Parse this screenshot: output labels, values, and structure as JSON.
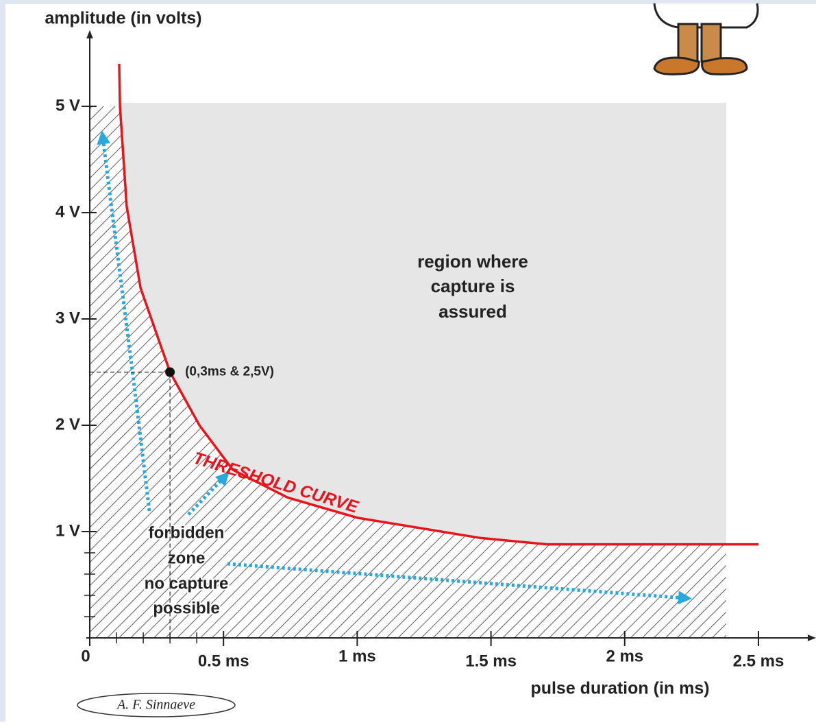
{
  "chart_data": {
    "type": "line",
    "y_label": "amplitude (in volts)",
    "x_label": "pulse duration (in ms)",
    "series": [
      {
        "name": "THRESHOLD CURVE",
        "color": "#e8141c",
        "x": [
          0.11,
          0.113,
          0.138,
          0.19,
          0.3,
          0.41,
          0.535,
          0.74,
          1.0,
          1.46,
          1.71,
          2.5
        ],
        "values": [
          5.4,
          5.0,
          4.06,
          3.29,
          2.5,
          2.0,
          1.58,
          1.32,
          1.13,
          0.94,
          0.88,
          0.88
        ]
      }
    ],
    "xlim": [
      0,
      2.5
    ],
    "ylim": [
      0,
      5
    ],
    "xticks": [
      {
        "value": 0,
        "label": "0"
      },
      {
        "value": 0.5,
        "label": "0.5 ms"
      },
      {
        "value": 1,
        "label": "1 ms"
      },
      {
        "value": 1.5,
        "label": "1.5 ms"
      },
      {
        "value": 2,
        "label": "2 ms"
      },
      {
        "value": 2.5,
        "label": "2.5 ms"
      }
    ],
    "yticks": [
      {
        "value": 1,
        "label": "1 V"
      },
      {
        "value": 2,
        "label": "2 V"
      },
      {
        "value": 3,
        "label": "3 V"
      },
      {
        "value": 4,
        "label": "4 V"
      },
      {
        "value": 5,
        "label": "5 V"
      }
    ],
    "xminor": [
      0.1,
      0.2,
      0.3,
      0.4
    ],
    "yminor": [
      0.2,
      0.4,
      0.6,
      0.8
    ],
    "point": {
      "x": 0.3,
      "y": 2.5,
      "label": "(0,3ms & 2,5V)"
    },
    "region_label": [
      "region where",
      "capture is",
      "assured"
    ],
    "forbidden_label": [
      "forbidden",
      "zone",
      "no capture",
      "possible"
    ],
    "signature": "A. F. Sinnaeve"
  }
}
